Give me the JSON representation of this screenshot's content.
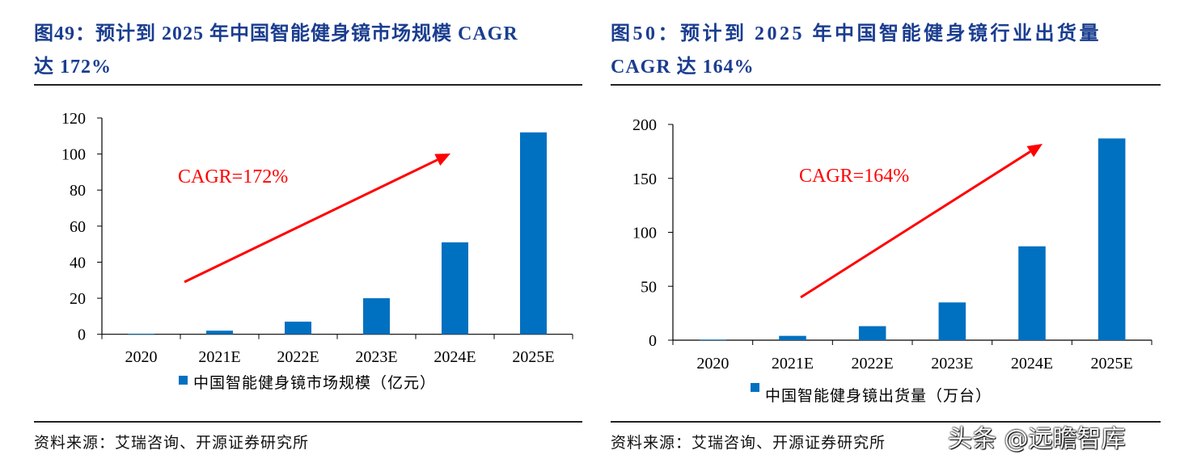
{
  "panels": [
    {
      "title_line1": "图49：预计到 2025 年中国智能健身镜市场规模 CAGR",
      "title_line2": "达 172%",
      "source": "资料来源：艾瑞咨询、开源证券研究所"
    },
    {
      "title_line1": "图50：预计到 2025 年中国智能健身镜行业出货量",
      "title_line2": "CAGR 达 164%",
      "source": "资料来源：艾瑞咨询、开源证券研究所"
    }
  ],
  "watermark": "头条 @远瞻智库",
  "chart_data": [
    {
      "type": "bar",
      "categories": [
        "2020",
        "2021E",
        "2022E",
        "2023E",
        "2024E",
        "2025E"
      ],
      "series": [
        {
          "name": "中国智能健身镜市场规模（亿元）",
          "values": [
            0.3,
            2,
            7,
            20,
            51,
            112
          ],
          "color": "#0070c0"
        }
      ],
      "ylim": [
        0,
        120
      ],
      "yticks": [
        0,
        20,
        40,
        60,
        80,
        100,
        120
      ],
      "annotation": "CAGR=172%",
      "annotation_color": "#ff0000",
      "legend": "bottom",
      "grid": false
    },
    {
      "type": "bar",
      "categories": [
        "2020",
        "2021E",
        "2022E",
        "2023E",
        "2024E",
        "2025E"
      ],
      "series": [
        {
          "name": "中国智能健身镜出货量（万台）",
          "values": [
            0.5,
            4,
            13,
            35,
            87,
            187
          ],
          "color": "#0070c0"
        }
      ],
      "ylim": [
        0,
        200
      ],
      "yticks": [
        0,
        50,
        100,
        150,
        200
      ],
      "annotation": "CAGR=164%",
      "annotation_color": "#ff0000",
      "legend": "bottom",
      "grid": false
    }
  ]
}
